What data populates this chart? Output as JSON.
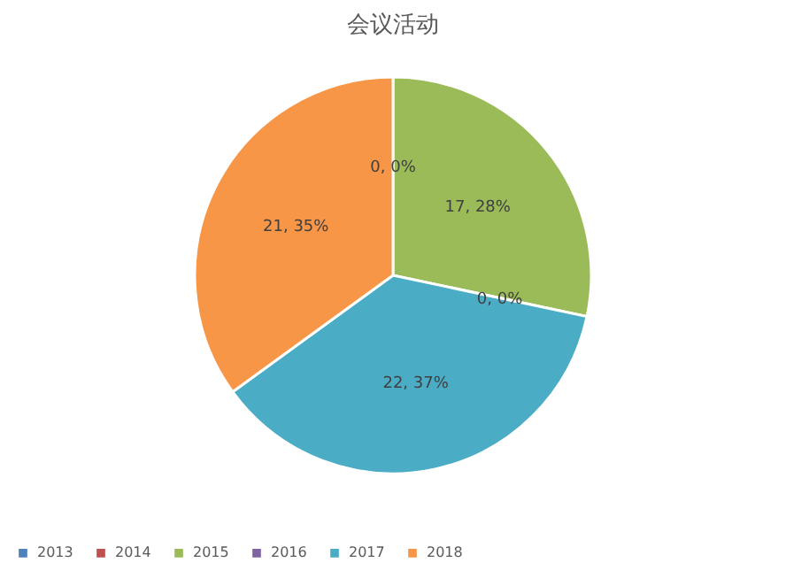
{
  "chart_data": {
    "type": "pie",
    "title": "会议活动",
    "categories": [
      "2013",
      "2014",
      "2015",
      "2016",
      "2017",
      "2018"
    ],
    "values": [
      0,
      0,
      17,
      0,
      22,
      21
    ],
    "colors": [
      "#4f81bd",
      "#c0504d",
      "#9bbb59",
      "#8064a2",
      "#4bacc6",
      "#f79646"
    ],
    "value_labels": [
      "0, 0%",
      null,
      "17, 28%",
      "0, 0%",
      "22, 37%",
      "21, 35%"
    ],
    "legend": "bottom"
  }
}
